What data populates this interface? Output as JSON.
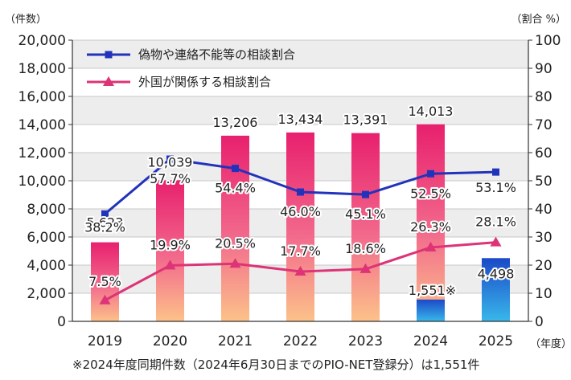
{
  "chart_data": {
    "type": "bar",
    "y_left_unit": "（件数）",
    "y_right_unit": "（割合 %）",
    "x_unit": "（年度）",
    "categories": [
      "2019",
      "2020",
      "2021",
      "2022",
      "2023",
      "2024",
      "2025"
    ],
    "bars": {
      "values": [
        5623,
        10039,
        13206,
        13434,
        13391,
        14013,
        4498
      ],
      "labels": [
        "5,623",
        "10,039",
        "13,206",
        "13,434",
        "13,391",
        "14,013",
        "4,498"
      ]
    },
    "bar_2024_same_period": {
      "value": 1551,
      "label": "1,551※"
    },
    "series": [
      {
        "name": "偽物や連絡不能等の相談割合",
        "values": [
          38.2,
          57.7,
          54.4,
          46.0,
          45.1,
          52.5,
          53.1
        ],
        "labels": [
          "38.2%",
          "57.7%",
          "54.4%",
          "46.0%",
          "45.1%",
          "52.5%",
          "53.1%"
        ],
        "color": "#2233bb",
        "marker": "square"
      },
      {
        "name": "外国が関係する相談割合",
        "values": [
          7.5,
          19.9,
          20.5,
          17.7,
          18.6,
          26.3,
          28.1
        ],
        "labels": [
          "7.5%",
          "19.9%",
          "20.5%",
          "17.7%",
          "18.6%",
          "26.3%",
          "28.1%"
        ],
        "color": "#dd3377",
        "marker": "triangle"
      }
    ],
    "y_left_ticks": [
      "0",
      "2,000",
      "4,000",
      "6,000",
      "8,000",
      "10,000",
      "12,000",
      "14,000",
      "16,000",
      "18,000",
      "20,000"
    ],
    "y_right_ticks": [
      "0",
      "10",
      "20",
      "30",
      "40",
      "50",
      "60",
      "70",
      "80",
      "90",
      "100"
    ],
    "ylim_left": [
      0,
      20000
    ],
    "ylim_right": [
      0,
      100
    ],
    "grid": true,
    "legend_position": "top-left",
    "colors": {
      "bar_top": "#e8206e",
      "bar_bottom": "#fcc28a",
      "bar_2025_top": "#1c49c8",
      "bar_2025_bottom": "#38b8ea",
      "grid_band": "#ededed"
    }
  },
  "footnote": "※2024年度同期件数（2024年6月30日までのPIO-NET登録分）は1,551件"
}
